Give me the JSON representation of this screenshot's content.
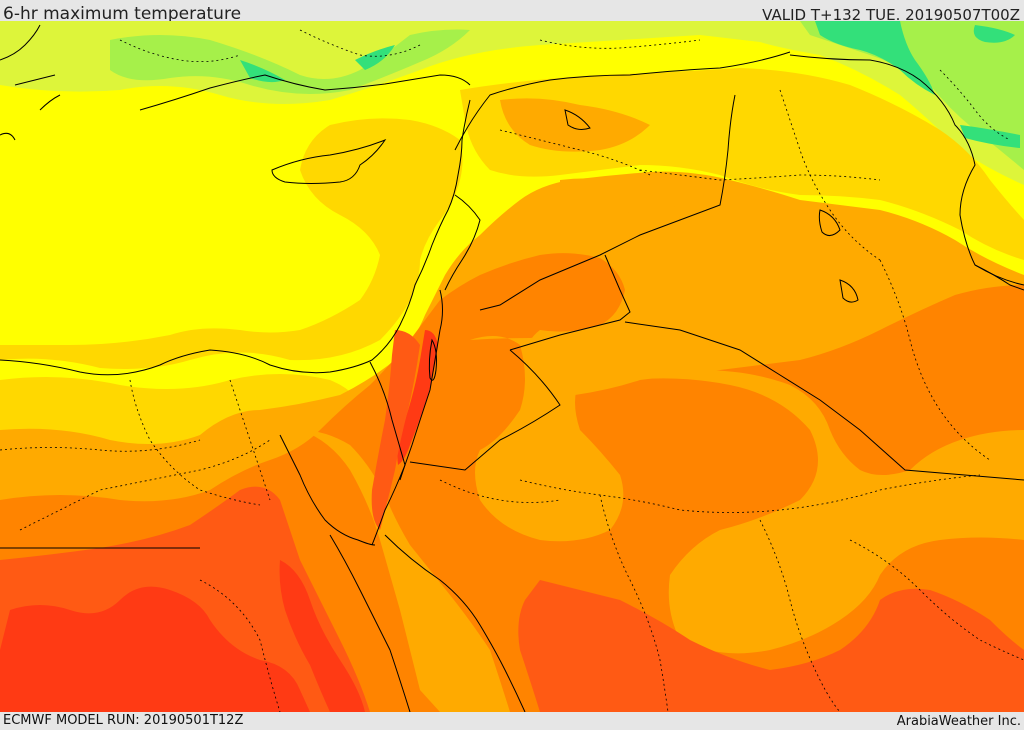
{
  "header": {
    "product_title": "6-hr maximum temperature",
    "valid_time": "VALID T+132 TUE. 20190507T00Z"
  },
  "footer": {
    "model_run": "ECMWF MODEL RUN: 20190501T12Z",
    "credit": "ArabiaWeather Inc."
  },
  "colors": {
    "cool_green": "#33e07a",
    "light_green": "#a6f04a",
    "lime": "#ddf53a",
    "yellow": "#ffff00",
    "gold": "#ffd800",
    "amber": "#ffaa00",
    "orange": "#ff8400",
    "dark_orange": "#ff5a14",
    "red_orange": "#ff3a14",
    "border_line": "#000000"
  }
}
